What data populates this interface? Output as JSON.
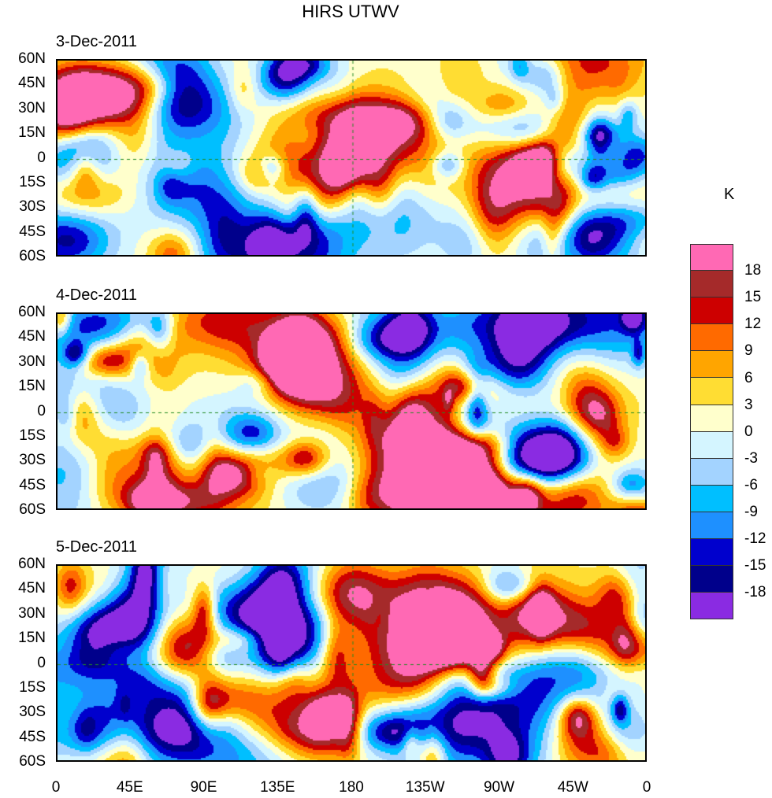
{
  "title": "HIRS UTWV",
  "panels": [
    {
      "date": "3-Dec-2011"
    },
    {
      "date": "4-Dec-2011"
    },
    {
      "date": "5-Dec-2011"
    }
  ],
  "y_ticks": [
    "60N",
    "45N",
    "30N",
    "15N",
    "0",
    "15S",
    "30S",
    "45S",
    "60S"
  ],
  "x_ticks": [
    "0",
    "45E",
    "90E",
    "135E",
    "180",
    "135W",
    "90W",
    "45W",
    "0"
  ],
  "colorbar": {
    "unit": "K",
    "levels": [
      "18",
      "15",
      "12",
      "9",
      "6",
      "3",
      "0",
      "-3",
      "-6",
      "-9",
      "-12",
      "-15",
      "-18"
    ],
    "colors": [
      "#ff69b4",
      "#a52a2a",
      "#cd0000",
      "#ff6a00",
      "#ffa500",
      "#ffdd33",
      "#ffffcc",
      "#d4f5ff",
      "#a3d3ff",
      "#00bfff",
      "#1e90ff",
      "#0000cd",
      "#00008b",
      "#8a2be2"
    ]
  }
}
